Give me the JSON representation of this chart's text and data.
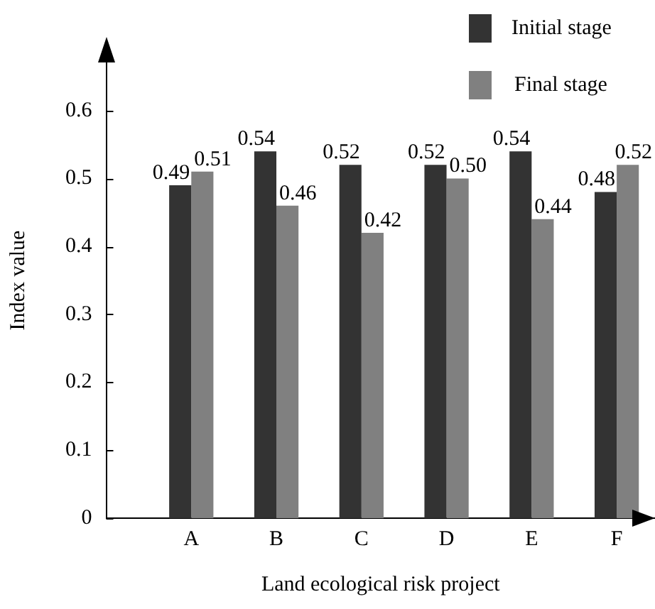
{
  "chart_data": {
    "type": "bar",
    "xlabel": "Land ecological risk project",
    "ylabel": "Index value",
    "categories": [
      "A",
      "B",
      "C",
      "D",
      "E",
      "F"
    ],
    "series": [
      {
        "name": "Initial stage",
        "color": "#333333",
        "values": [
          0.49,
          0.54,
          0.52,
          0.52,
          0.54,
          0.48
        ],
        "value_labels": [
          "0.49",
          "0.54",
          "0.52",
          "0.52",
          "0.54",
          "0.48"
        ]
      },
      {
        "name": "Final stage",
        "color": "#808080",
        "values": [
          0.51,
          0.46,
          0.42,
          0.5,
          0.44,
          0.52
        ],
        "value_labels": [
          "0.51",
          "0.46",
          "0.42",
          "0.50",
          "0.44",
          "0.52"
        ]
      }
    ],
    "ylim": [
      0,
      0.7
    ],
    "yticks": [
      0,
      0.1,
      0.2,
      0.3,
      0.4,
      0.5,
      0.6
    ],
    "legend": "top right"
  }
}
